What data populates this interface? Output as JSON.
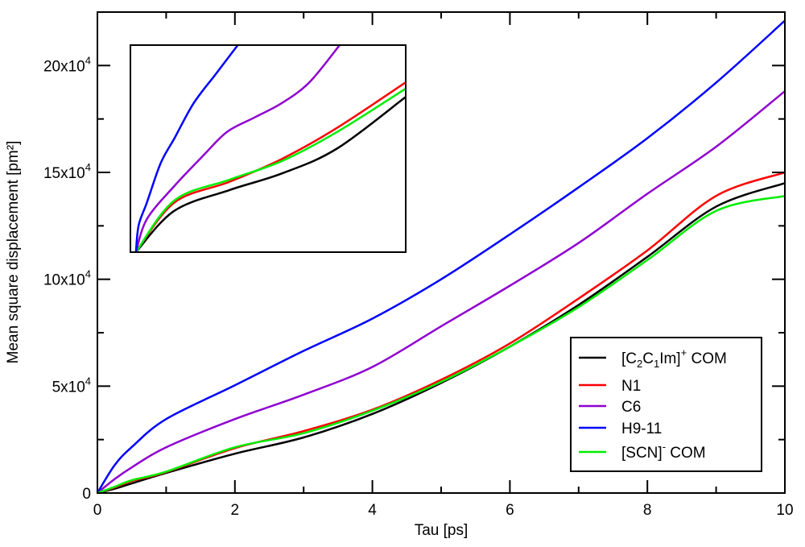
{
  "chart_data": {
    "type": "line",
    "title": "",
    "xlabel": "Tau [ps]",
    "ylabel": "Mean square displacement [pm²]",
    "xlim": [
      0,
      10
    ],
    "ylim": [
      0,
      225000
    ],
    "x_ticks": [
      {
        "value": 0,
        "label": "0"
      },
      {
        "value": 2,
        "label": "2"
      },
      {
        "value": 4,
        "label": "4"
      },
      {
        "value": 6,
        "label": "6"
      },
      {
        "value": 8,
        "label": "8"
      },
      {
        "value": 10,
        "label": "10"
      }
    ],
    "x_minor_ticks": [
      1,
      3,
      5,
      7,
      9
    ],
    "y_ticks": [
      {
        "value": 0,
        "label": "0",
        "exp": ""
      },
      {
        "value": 50000,
        "label": "5x10",
        "exp": "4"
      },
      {
        "value": 100000,
        "label": "10x10",
        "exp": "4"
      },
      {
        "value": 150000,
        "label": "15x10",
        "exp": "4"
      },
      {
        "value": 200000,
        "label": "20x10",
        "exp": "4"
      }
    ],
    "y_minor_ticks": [
      25000,
      75000,
      125000,
      175000
    ],
    "grid": false,
    "legend_position": "bottom-right",
    "x": [
      0,
      0.25,
      0.5,
      1,
      2,
      3,
      4,
      5,
      6,
      7,
      8,
      9,
      10
    ],
    "series": [
      {
        "name": "[C2C1Im]+ COM",
        "label_main": "[C",
        "sub1": "2",
        "mid": "C",
        "sub2": "1",
        "tail": "Im]",
        "sup": "+",
        "after": " COM",
        "color": "#000000",
        "values": [
          0,
          2000,
          4500,
          9400,
          18400,
          26000,
          37000,
          51500,
          68500,
          88000,
          110500,
          134000,
          145000
        ]
      },
      {
        "name": "N1",
        "color": "#ff0000",
        "values": [
          0,
          2600,
          5600,
          9800,
          21000,
          29000,
          39000,
          53000,
          70000,
          91000,
          113500,
          139000,
          150000
        ]
      },
      {
        "name": "C6",
        "color": "#8f00d0",
        "values": [
          0,
          6500,
          12000,
          21400,
          34600,
          46000,
          59000,
          78000,
          97000,
          117000,
          140000,
          162000,
          188000
        ]
      },
      {
        "name": "H9-11",
        "color": "#0000ff",
        "values": [
          0,
          13000,
          21500,
          34600,
          50400,
          66500,
          81600,
          100000,
          121000,
          143000,
          166000,
          192000,
          221000
        ]
      },
      {
        "name": "[SCN]- COM",
        "label_main": "[SCN]",
        "sup": "-",
        "after": " COM",
        "color": "#00ee00",
        "values": [
          0,
          2900,
          6000,
          10000,
          21400,
          28000,
          38500,
          52000,
          68500,
          87000,
          109000,
          132000,
          139000
        ]
      }
    ],
    "inset": {
      "xlim": [
        0,
        1
      ],
      "ylim": [
        0,
        12000
      ],
      "series": [
        {
          "name": "[C2C1Im]+ COM",
          "color": "#000000",
          "x": [
            0.02,
            0.16,
            0.36,
            0.55,
            0.75,
            1.0
          ],
          "values": [
            0,
            2400,
            3600,
            4560,
            6000,
            9000
          ]
        },
        {
          "name": "N1",
          "color": "#ff0000",
          "x": [
            0.02,
            0.16,
            0.36,
            0.55,
            0.75,
            1.0
          ],
          "values": [
            0,
            2880,
            4080,
            5400,
            7200,
            9840
          ]
        },
        {
          "name": "[SCN]- COM",
          "color": "#00ee00",
          "x": [
            0.02,
            0.16,
            0.36,
            0.55,
            0.75,
            1.0
          ],
          "values": [
            0,
            3000,
            4200,
            5280,
            6960,
            9480
          ]
        },
        {
          "name": "C6",
          "color": "#8f00d0",
          "x": [
            0.02,
            0.06,
            0.16,
            0.26,
            0.35,
            0.45,
            0.55,
            0.65,
            0.76
          ],
          "values": [
            0,
            1920,
            3840,
            5520,
            6960,
            7800,
            8640,
            9840,
            12000
          ]
        },
        {
          "name": "H9-11",
          "color": "#0000ff",
          "x": [
            0.02,
            0.03,
            0.06,
            0.11,
            0.16,
            0.23,
            0.31,
            0.39
          ],
          "values": [
            0,
            1560,
            2880,
            5160,
            6600,
            8640,
            10320,
            12000
          ]
        }
      ]
    }
  }
}
